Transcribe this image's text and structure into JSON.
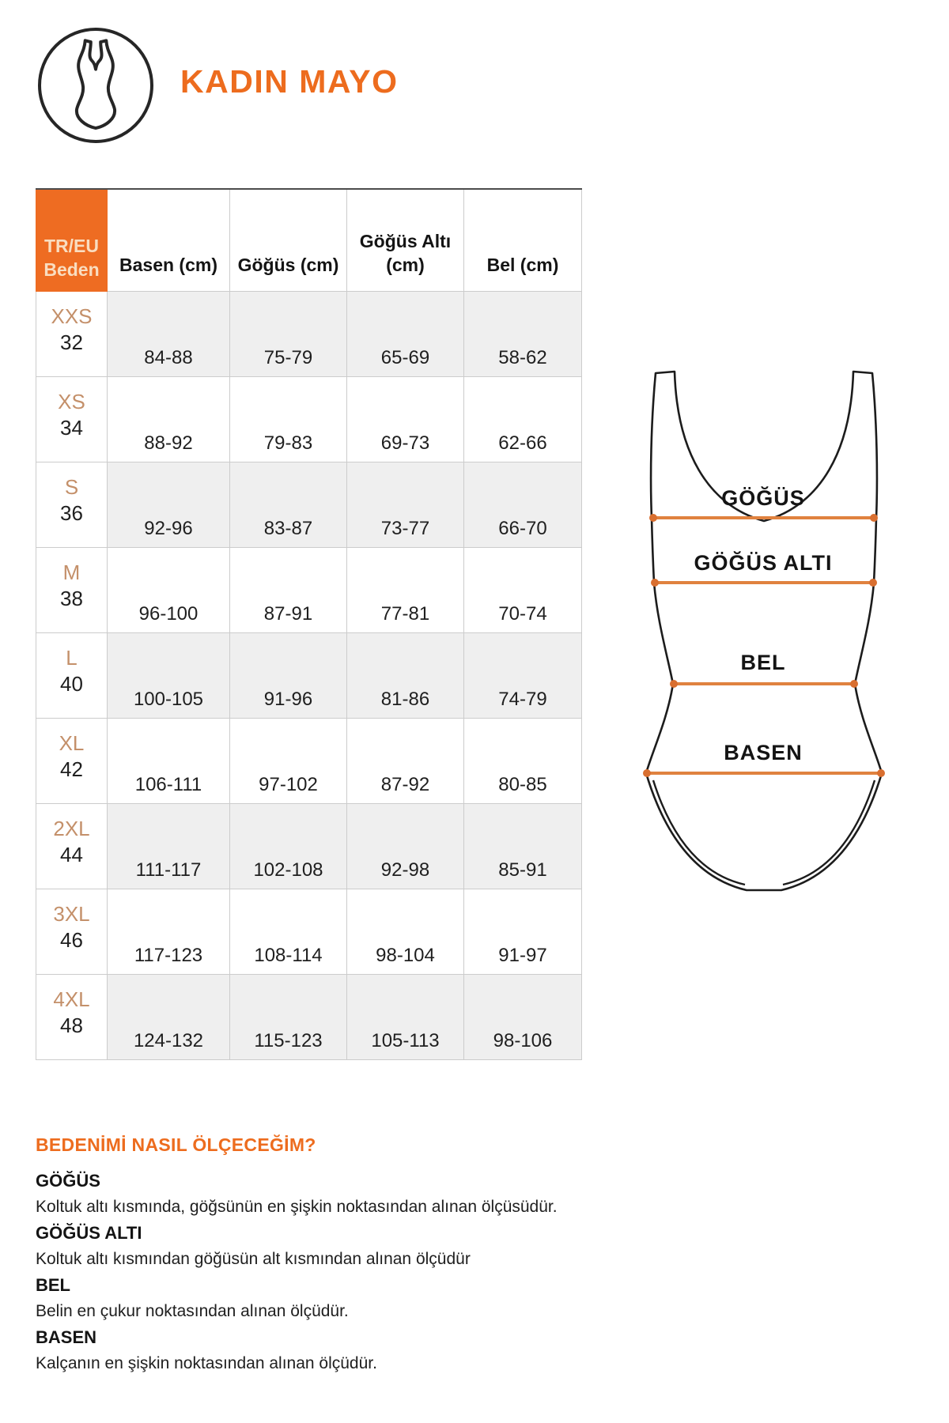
{
  "header": {
    "title": "KADIN MAYO",
    "icon": "swimsuit-icon"
  },
  "colors": {
    "accent_orange": "#ed6c1e",
    "header_cell_orange": "#ee6c22",
    "header_cell_text": "#f9ddc0",
    "size_label_tan": "#c4906a",
    "row_alt_gray": "#efefef",
    "measure_line_orange": "#e0823f",
    "measure_dot_orange": "#d96f30",
    "outline_black": "#1c1c1c"
  },
  "table": {
    "columns": [
      "TR/EU\nBeden",
      "Basen (cm)",
      "Göğüs (cm)",
      "Göğüs Altı\n(cm)",
      "Bel (cm)"
    ],
    "rows": [
      {
        "size": "XXS",
        "eu": "32",
        "values": [
          "84-88",
          "75-79",
          "65-69",
          "58-62"
        ]
      },
      {
        "size": "XS",
        "eu": "34",
        "values": [
          "88-92",
          "79-83",
          "69-73",
          "62-66"
        ]
      },
      {
        "size": "S",
        "eu": "36",
        "values": [
          "92-96",
          "83-87",
          "73-77",
          "66-70"
        ]
      },
      {
        "size": "M",
        "eu": "38",
        "values": [
          "96-100",
          "87-91",
          "77-81",
          "70-74"
        ]
      },
      {
        "size": "L",
        "eu": "40",
        "values": [
          "100-105",
          "91-96",
          "81-86",
          "74-79"
        ]
      },
      {
        "size": "XL",
        "eu": "42",
        "values": [
          "106-111",
          "97-102",
          "87-92",
          "80-85"
        ]
      },
      {
        "size": "2XL",
        "eu": "44",
        "values": [
          "111-117",
          "102-108",
          "92-98",
          "85-91"
        ]
      },
      {
        "size": "3XL",
        "eu": "46",
        "values": [
          "117-123",
          "108-114",
          "98-104",
          "91-97"
        ]
      },
      {
        "size": "4XL",
        "eu": "48",
        "values": [
          "124-132",
          "115-123",
          "105-113",
          "98-106"
        ]
      }
    ]
  },
  "diagram": {
    "labels": {
      "gogus": "GÖĞÜS",
      "gogus_alti": "GÖĞÜS ALTI",
      "bel": "BEL",
      "basen": "BASEN"
    }
  },
  "guide": {
    "title": "BEDENİMİ NASIL ÖLÇECEĞİM?",
    "items": [
      {
        "term": "GÖĞÜS",
        "description": "Koltuk altı kısmında, göğsünün en şişkin noktasından alınan ölçüsüdür."
      },
      {
        "term": "GÖĞÜS ALTI",
        "description": "Koltuk altı kısmından göğüsün alt kısmından alınan ölçüdür"
      },
      {
        "term": "BEL",
        "description": "Belin en çukur noktasından alınan ölçüdür."
      },
      {
        "term": "BASEN",
        "description": "Kalçanın en şişkin noktasından alınan ölçüdür."
      }
    ]
  }
}
